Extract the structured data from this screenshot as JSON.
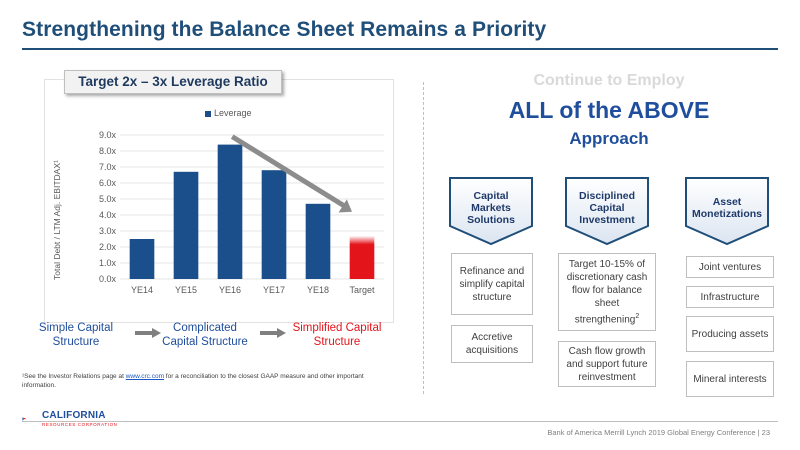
{
  "title": "Strengthening the Balance Sheet Remains a Priority",
  "chart_panel_title": "Target 2x – 3x Leverage Ratio",
  "chart_data": {
    "type": "bar",
    "categories": [
      "YE14",
      "YE15",
      "YE16",
      "YE17",
      "YE18",
      "Target"
    ],
    "series": [
      {
        "name": "Leverage",
        "values": [
          2.5,
          6.7,
          8.4,
          6.8,
          4.7,
          2.7
        ]
      }
    ],
    "ylabel": "Total Debt / LTM Adj. EBITDAX¹",
    "ylim": [
      0,
      9
    ],
    "yticks": [
      "0.0x",
      "1.0x",
      "2.0x",
      "3.0x",
      "4.0x",
      "5.0x",
      "6.0x",
      "7.0x",
      "8.0x",
      "9.0x"
    ],
    "legend": "top-center",
    "colors": {
      "bar": "#1b4f8c",
      "target": "#e3151b"
    }
  },
  "captions": {
    "simple": "Simple Capital Structure",
    "complicated": "Complicated Capital Structure",
    "simplified": "Simplified Capital Structure"
  },
  "footnote": {
    "prefix": "¹See the Investor Relations page at ",
    "link": "www.crc.com",
    "suffix": " for a reconciliation to the closest GAAP measure and other important information."
  },
  "approach": {
    "line1": "Continue to Employ",
    "line2": "ALL of the ABOVE",
    "line3": "Approach"
  },
  "columns": [
    {
      "heading": "Capital Markets Solutions",
      "items": [
        "Refinance and simplify capital structure",
        "Accretive acquisitions"
      ]
    },
    {
      "heading": "Disciplined Capital Investment",
      "items": [
        "Target 10-15% of discretionary cash flow for balance sheet strengthening²",
        "Cash flow growth and support future reinvestment"
      ]
    },
    {
      "heading": "Asset Monetizations",
      "items": [
        "Joint ventures",
        "Infrastructure",
        "Producing assets",
        "Mineral interests"
      ]
    }
  ],
  "footer": "Bank of America Merrill Lynch 2019 Global Energy Conference | 23",
  "logo": {
    "name": "CALIFORNIA",
    "sub": "RESOURCES CORPORATION"
  }
}
